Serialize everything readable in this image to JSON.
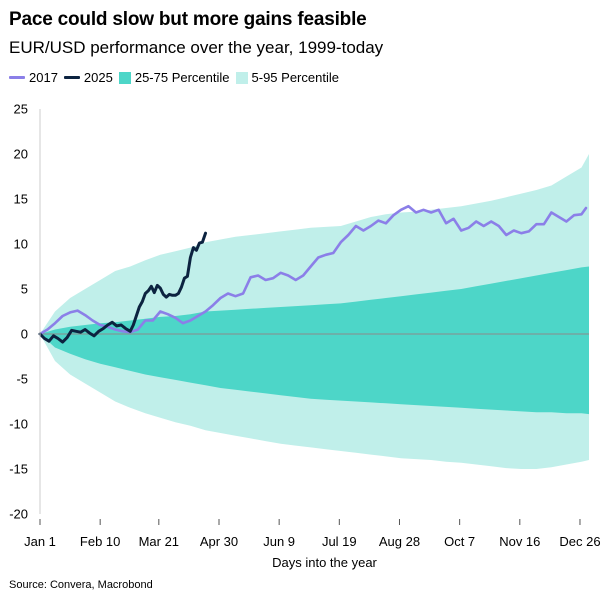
{
  "title": "Pace could slow but more gains feasible",
  "subtitle": "EUR/USD performance over the year, 1999-today",
  "source": "Source: Convera, Macrobond",
  "legend": [
    {
      "label": "2017",
      "kind": "line",
      "color": "#8b7fe8"
    },
    {
      "label": "2025",
      "kind": "line",
      "color": "#0c2340"
    },
    {
      "label": "25-75 Percentile",
      "kind": "area",
      "color": "#4dd6c8"
    },
    {
      "label": "5-95 Percentile",
      "kind": "area",
      "color": "#c0efea"
    }
  ],
  "chart_data": {
    "type": "area",
    "title": "Pace could slow but more gains feasible",
    "xlabel": "Days into the year",
    "ylabel": "",
    "xlim": [
      0,
      365
    ],
    "ylim": [
      -20,
      25
    ],
    "x_ticks": [
      {
        "day": 0,
        "label": "Jan 1"
      },
      {
        "day": 40,
        "label": "Feb 10"
      },
      {
        "day": 79,
        "label": "Mar 21"
      },
      {
        "day": 119,
        "label": "Apr 30"
      },
      {
        "day": 159,
        "label": "Jun 9"
      },
      {
        "day": 199,
        "label": "Jul 19"
      },
      {
        "day": 239,
        "label": "Aug 28"
      },
      {
        "day": 279,
        "label": "Oct 7"
      },
      {
        "day": 319,
        "label": "Nov 16"
      },
      {
        "day": 359,
        "label": "Dec 26"
      }
    ],
    "y_ticks": [
      -20,
      -15,
      -10,
      -5,
      0,
      5,
      10,
      15,
      20,
      25
    ],
    "zero_line": true,
    "bands": [
      {
        "name": "5-95 Percentile",
        "x": [
          0,
          10,
          20,
          30,
          40,
          50,
          60,
          70,
          80,
          90,
          100,
          110,
          120,
          130,
          140,
          150,
          160,
          170,
          180,
          190,
          200,
          210,
          220,
          230,
          240,
          250,
          260,
          270,
          280,
          290,
          300,
          310,
          320,
          330,
          340,
          350,
          360,
          365
        ],
        "upper": [
          0,
          2.5,
          4,
          5,
          6,
          7,
          7.5,
          8.2,
          8.8,
          9.2,
          9.6,
          10.2,
          10.5,
          10.8,
          11,
          11.2,
          11.4,
          11.6,
          11.8,
          11.9,
          12,
          12.5,
          13,
          13.3,
          13.5,
          13.6,
          13.8,
          14,
          14.2,
          14.5,
          14.8,
          15.2,
          15.6,
          16,
          16.5,
          17.5,
          18.5,
          20
        ],
        "lower": [
          0,
          -3,
          -4.5,
          -5.5,
          -6.5,
          -7.5,
          -8.2,
          -8.8,
          -9.3,
          -9.8,
          -10.2,
          -10.7,
          -11,
          -11.3,
          -11.6,
          -11.9,
          -12.2,
          -12.4,
          -12.6,
          -12.8,
          -13,
          -13.2,
          -13.4,
          -13.6,
          -13.8,
          -13.9,
          -14,
          -14.2,
          -14.3,
          -14.5,
          -14.7,
          -14.9,
          -15,
          -15,
          -14.8,
          -14.5,
          -14.2,
          -14
        ]
      },
      {
        "name": "25-75 Percentile",
        "x": [
          0,
          10,
          20,
          30,
          40,
          50,
          60,
          70,
          80,
          90,
          100,
          110,
          120,
          130,
          140,
          150,
          160,
          170,
          180,
          190,
          200,
          210,
          220,
          230,
          240,
          250,
          260,
          270,
          280,
          290,
          300,
          310,
          320,
          330,
          340,
          350,
          360,
          365
        ],
        "upper": [
          0,
          0.5,
          0.8,
          1,
          1.2,
          1.3,
          1.5,
          1.7,
          1.9,
          2,
          2.2,
          2.5,
          2.6,
          2.7,
          2.8,
          2.9,
          3,
          3.1,
          3.2,
          3.3,
          3.4,
          3.6,
          3.8,
          4,
          4.2,
          4.4,
          4.6,
          4.8,
          5,
          5.3,
          5.6,
          5.9,
          6.2,
          6.5,
          6.8,
          7.1,
          7.4,
          7.5
        ],
        "lower": [
          0,
          -1.5,
          -2.2,
          -2.8,
          -3.3,
          -3.7,
          -4.1,
          -4.5,
          -4.8,
          -5.1,
          -5.4,
          -5.7,
          -6,
          -6.2,
          -6.4,
          -6.6,
          -6.8,
          -7,
          -7.2,
          -7.3,
          -7.4,
          -7.5,
          -7.6,
          -7.7,
          -7.8,
          -7.9,
          -8,
          -8.1,
          -8.2,
          -8.3,
          -8.4,
          -8.5,
          -8.6,
          -8.7,
          -8.7,
          -8.8,
          -8.8,
          -8.9
        ]
      }
    ],
    "series": [
      {
        "name": "2017",
        "x": [
          0,
          5,
          10,
          15,
          20,
          25,
          30,
          35,
          40,
          45,
          50,
          55,
          60,
          65,
          70,
          75,
          80,
          85,
          90,
          95,
          100,
          105,
          110,
          115,
          120,
          125,
          130,
          135,
          140,
          145,
          150,
          155,
          160,
          165,
          170,
          175,
          180,
          185,
          190,
          195,
          200,
          205,
          210,
          215,
          220,
          225,
          230,
          235,
          240,
          245,
          250,
          255,
          260,
          265,
          270,
          275,
          280,
          285,
          290,
          295,
          300,
          305,
          310,
          315,
          320,
          325,
          330,
          335,
          340,
          345,
          350,
          355,
          360,
          363
        ],
        "values": [
          0,
          0.5,
          1.2,
          2,
          2.4,
          2.6,
          2.1,
          1.5,
          1,
          0.8,
          0.5,
          0.3,
          0.2,
          0.5,
          1.5,
          1.5,
          2.5,
          2.2,
          1.8,
          1.2,
          1.5,
          2,
          2.5,
          3.2,
          4,
          4.5,
          4.2,
          4.5,
          6.3,
          6.5,
          6,
          6.2,
          6.8,
          6.5,
          6,
          6.5,
          7.5,
          8.5,
          8.8,
          9,
          10.2,
          11,
          12,
          11.5,
          12,
          12.6,
          12.3,
          13.2,
          13.8,
          14.2,
          13.5,
          13.8,
          13.5,
          13.8,
          12.3,
          12.8,
          11.5,
          11.8,
          12.5,
          12,
          12.5,
          12,
          11,
          11.5,
          11.2,
          11.4,
          12.2,
          12.2,
          13.5,
          13,
          12.5,
          13.2,
          13.3,
          14
        ]
      },
      {
        "name": "2025",
        "x": [
          0,
          3,
          6,
          9,
          12,
          15,
          18,
          21,
          24,
          27,
          30,
          33,
          36,
          39,
          42,
          45,
          48,
          51,
          54,
          57,
          60,
          62,
          64,
          66,
          68,
          70,
          72,
          74,
          76,
          78,
          80,
          82,
          84,
          86,
          88,
          90,
          92,
          94,
          96,
          98,
          100,
          102,
          104,
          106,
          108,
          110
        ],
        "values": [
          0,
          -0.5,
          -0.8,
          -0.2,
          -0.5,
          -0.9,
          -0.4,
          0.4,
          0.3,
          0.2,
          0.5,
          0.1,
          -0.2,
          0.3,
          0.6,
          1,
          1.3,
          0.9,
          1,
          0.6,
          0.3,
          1,
          2,
          3,
          3.6,
          4.5,
          4.8,
          5.3,
          4.6,
          5.4,
          5.1,
          4.4,
          4.1,
          4.4,
          4.3,
          4.3,
          4.5,
          5.2,
          6.2,
          6.4,
          8.5,
          9.6,
          9.3,
          10.1,
          10.2,
          11.2
        ]
      }
    ]
  }
}
